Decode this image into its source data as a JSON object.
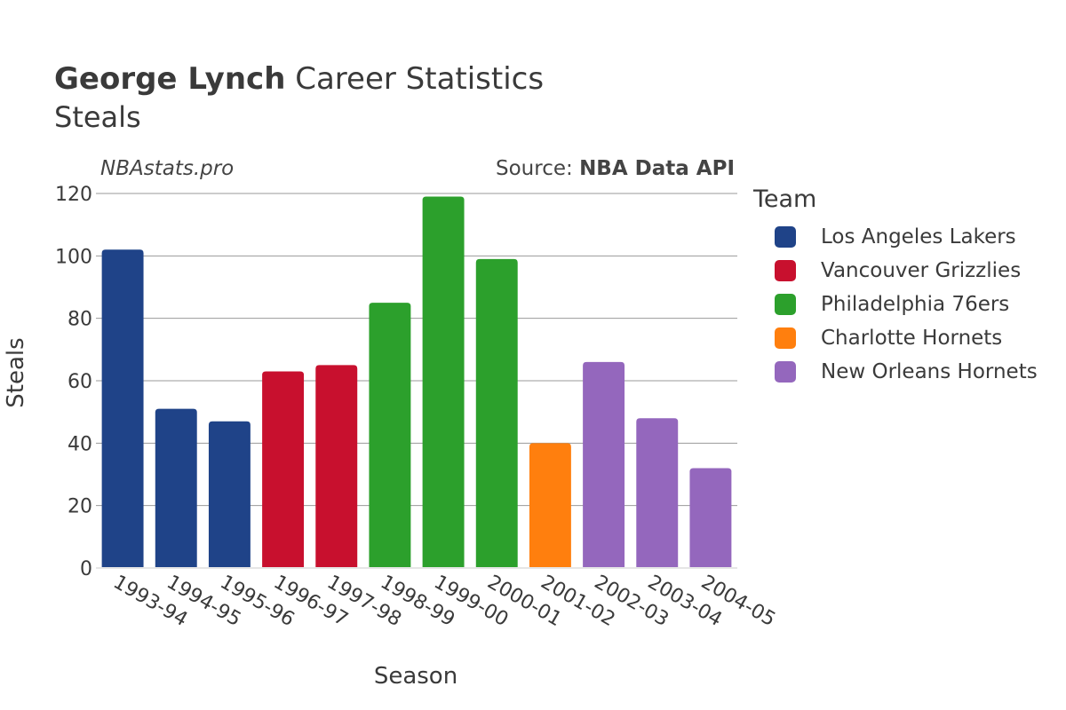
{
  "header": {
    "title_bold": "George Lynch",
    "title_rest": " Career Statistics",
    "subtitle": "Steals",
    "watermark": "NBAstats.pro",
    "source_prefix": "Source: ",
    "source_bold": "NBA Data API"
  },
  "legend": {
    "title": "Team",
    "items": [
      {
        "label": "Los Angeles Lakers",
        "color": "#1f4388"
      },
      {
        "label": "Vancouver Grizzlies",
        "color": "#c8102e"
      },
      {
        "label": "Philadelphia 76ers",
        "color": "#2ca02c"
      },
      {
        "label": "Charlotte Hornets",
        "color": "#ff7f0e"
      },
      {
        "label": "New Orleans Hornets",
        "color": "#9467bd"
      }
    ]
  },
  "chart_data": {
    "type": "bar",
    "title": "George Lynch Career Statistics",
    "subtitle": "Steals",
    "xlabel": "Season",
    "ylabel": "Steals",
    "ylim": [
      0,
      120
    ],
    "yticks": [
      0,
      20,
      40,
      60,
      80,
      100,
      120
    ],
    "grid": true,
    "legend_position": "right",
    "categories": [
      "1993-94",
      "1994-95",
      "1995-96",
      "1996-97",
      "1997-98",
      "1998-99",
      "1999-00",
      "2000-01",
      "2001-02",
      "2002-03",
      "2003-04",
      "2004-05"
    ],
    "values": [
      102,
      51,
      47,
      63,
      65,
      85,
      119,
      99,
      40,
      66,
      48,
      32
    ],
    "teams": [
      "Los Angeles Lakers",
      "Los Angeles Lakers",
      "Los Angeles Lakers",
      "Vancouver Grizzlies",
      "Vancouver Grizzlies",
      "Philadelphia 76ers",
      "Philadelphia 76ers",
      "Philadelphia 76ers",
      "Charlotte Hornets",
      "New Orleans Hornets",
      "New Orleans Hornets",
      "New Orleans Hornets"
    ]
  }
}
